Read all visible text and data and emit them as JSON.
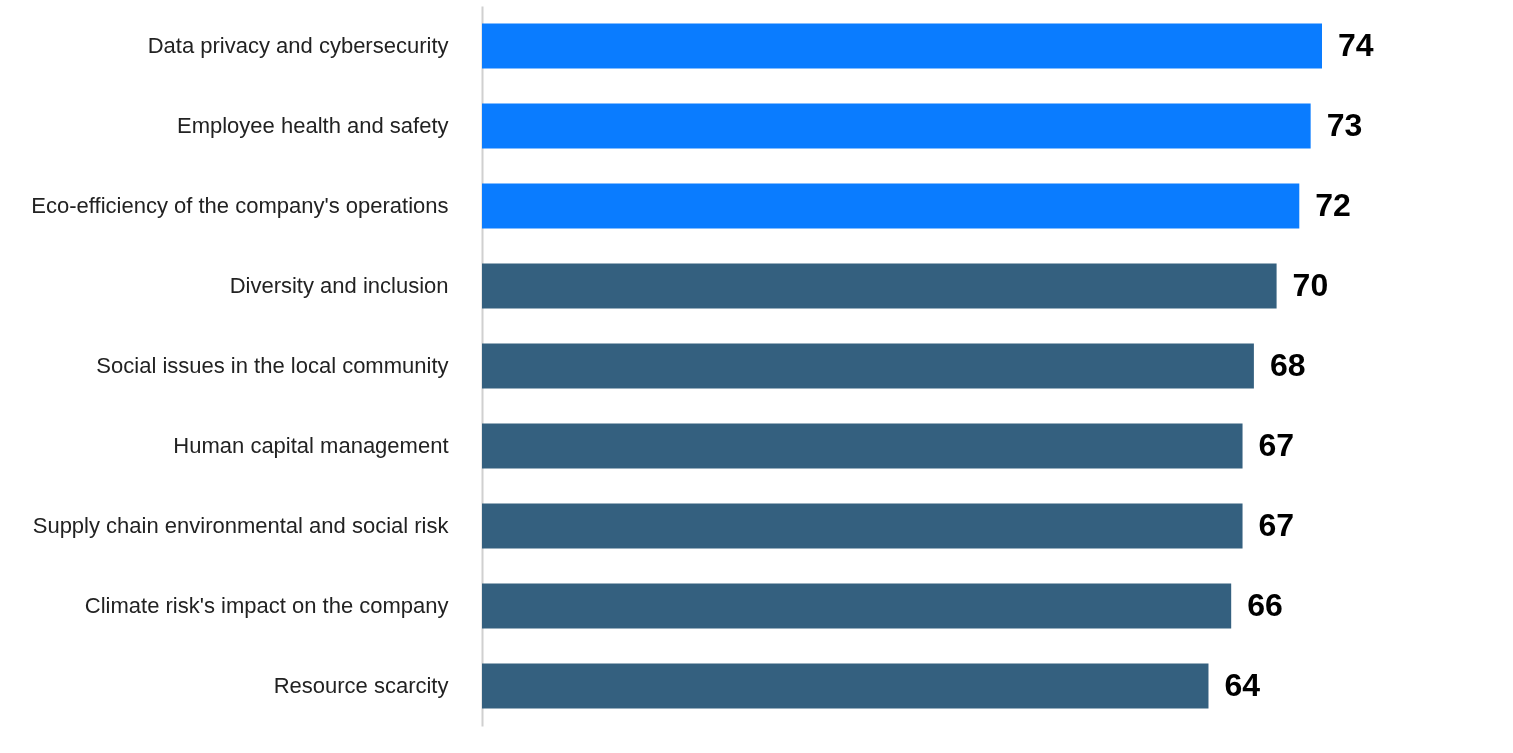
{
  "chart_data": {
    "type": "bar",
    "orientation": "horizontal",
    "categories": [
      "Data privacy and cybersecurity",
      "Employee health and safety",
      "Eco-efficiency of the company's operations",
      "Diversity and inclusion",
      "Social issues in the local community",
      "Human capital management",
      "Supply chain environmental and social risk",
      "Climate risk's impact on the company",
      "Resource scarcity"
    ],
    "values": [
      74,
      73,
      72,
      70,
      68,
      67,
      67,
      66,
      64
    ],
    "colors": [
      "#0a7cff",
      "#0a7cff",
      "#0a7cff",
      "#34607f",
      "#34607f",
      "#34607f",
      "#34607f",
      "#34607f",
      "#34607f"
    ],
    "data_labels": true
  }
}
